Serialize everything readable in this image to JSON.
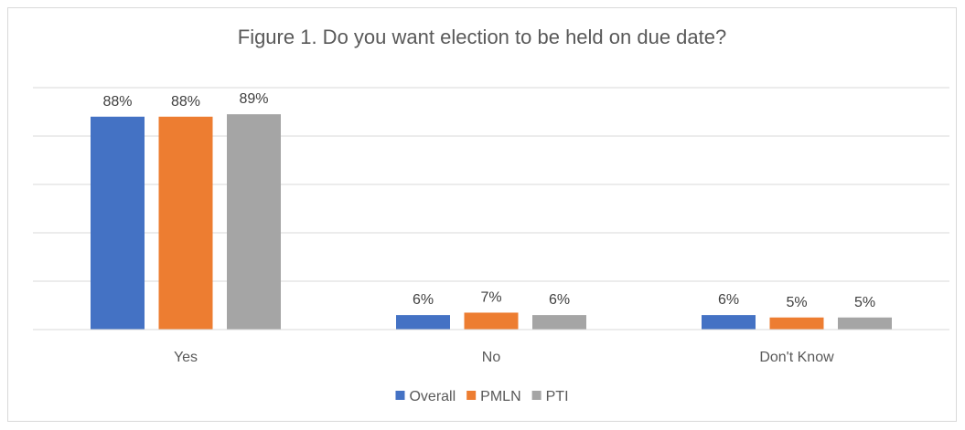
{
  "chart_data": {
    "type": "bar",
    "title": "Figure 1. Do you want election to be held on due date?",
    "categories": [
      "Yes",
      "No",
      "Don't Know"
    ],
    "series": [
      {
        "name": "Overall",
        "color": "#4472c4",
        "values": [
          88,
          6,
          6
        ]
      },
      {
        "name": "PMLN",
        "color": "#ed7d31",
        "values": [
          88,
          7,
          5
        ]
      },
      {
        "name": "PTI",
        "color": "#a5a5a5",
        "values": [
          89,
          6,
          5
        ]
      }
    ],
    "value_suffix": "%",
    "ylim": [
      0,
      100
    ],
    "y_gridlines": [
      0,
      20,
      40,
      60,
      80,
      100
    ],
    "grid": true,
    "legend": "bottom",
    "xlabel": "",
    "ylabel": ""
  }
}
